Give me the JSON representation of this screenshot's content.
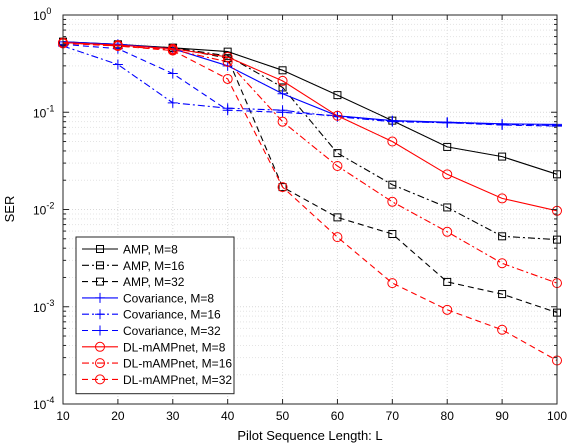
{
  "chart_data": {
    "type": "line",
    "title": "",
    "xlabel": "Pilot Sequence Length: L",
    "ylabel": "SER",
    "xlim": [
      10,
      100
    ],
    "ylim": [
      0.0001,
      1
    ],
    "yscale": "log",
    "grid": true,
    "minor_grid": true,
    "legend_position": "bottom-left",
    "x": [
      10,
      20,
      30,
      40,
      50,
      60,
      70,
      80,
      90,
      100
    ],
    "xticks": [
      "10",
      "20",
      "30",
      "40",
      "50",
      "60",
      "70",
      "80",
      "90",
      "100"
    ],
    "yticks": [
      {
        "base": "10",
        "exp": "-4",
        "value": 0.0001
      },
      {
        "base": "10",
        "exp": "-3",
        "value": 0.001
      },
      {
        "base": "10",
        "exp": "-2",
        "value": 0.01
      },
      {
        "base": "10",
        "exp": "-1",
        "value": 0.1
      },
      {
        "base": "10",
        "exp": "0",
        "value": 1
      }
    ],
    "series": [
      {
        "name": "AMP, M=8",
        "color": "#000000",
        "dash": "solid",
        "marker": "square",
        "values": [
          0.53,
          0.5,
          0.46,
          0.42,
          0.27,
          0.15,
          0.082,
          0.044,
          0.035,
          0.023
        ]
      },
      {
        "name": "AMP, M=16",
        "color": "#000000",
        "dash": "dashdot",
        "marker": "square",
        "values": [
          0.53,
          0.49,
          0.46,
          0.38,
          0.18,
          0.038,
          0.018,
          0.0105,
          0.0053,
          0.0049
        ]
      },
      {
        "name": "AMP, M=32",
        "color": "#000000",
        "dash": "dashed",
        "marker": "square",
        "values": [
          0.53,
          0.49,
          0.46,
          0.36,
          0.017,
          0.0083,
          0.0056,
          0.0018,
          0.00135,
          0.00087
        ]
      },
      {
        "name": "Covariance, M=8",
        "color": "#0000ff",
        "dash": "solid",
        "marker": "plus",
        "values": [
          0.53,
          0.5,
          0.45,
          0.3,
          0.155,
          0.092,
          0.082,
          0.079,
          0.076,
          0.075
        ]
      },
      {
        "name": "Covariance, M=16",
        "color": "#0000ff",
        "dash": "dashdot",
        "marker": "plus",
        "values": [
          0.48,
          0.31,
          0.125,
          0.11,
          0.105,
          0.09,
          0.08,
          0.078,
          0.075,
          0.073
        ]
      },
      {
        "name": "Covariance, M=32",
        "color": "#0000ff",
        "dash": "dashed",
        "marker": "plus",
        "values": [
          0.5,
          0.45,
          0.25,
          0.105,
          0.1,
          0.092,
          0.081,
          0.078,
          0.074,
          0.072
        ]
      },
      {
        "name": "DL-mAMPnet, M=8",
        "color": "#ff0000",
        "dash": "solid",
        "marker": "circle",
        "values": [
          0.52,
          0.49,
          0.45,
          0.37,
          0.21,
          0.092,
          0.05,
          0.023,
          0.013,
          0.0097
        ]
      },
      {
        "name": "DL-mAMPnet, M=16",
        "color": "#ff0000",
        "dash": "dashdot",
        "marker": "circle",
        "values": [
          0.52,
          0.48,
          0.44,
          0.33,
          0.08,
          0.028,
          0.012,
          0.0059,
          0.0028,
          0.00175
        ]
      },
      {
        "name": "DL-mAMPnet, M=32",
        "color": "#ff0000",
        "dash": "dashed",
        "marker": "circle",
        "values": [
          0.51,
          0.48,
          0.43,
          0.22,
          0.017,
          0.0052,
          0.00175,
          0.00093,
          0.00058,
          0.00028
        ]
      }
    ]
  }
}
